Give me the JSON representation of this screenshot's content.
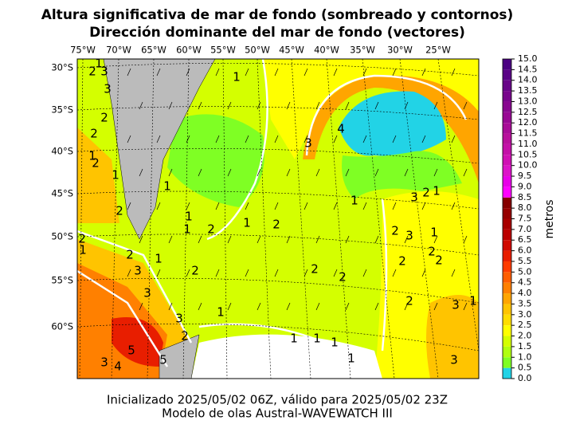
{
  "title": [
    "Altura significativa de mar de fondo (sombreado y contornos)",
    "Dirección dominante del mar de fondo (vectores)"
  ],
  "lon_labels": [
    "75°W",
    "70°W",
    "65°W",
    "60°W",
    "55°W",
    "50°W",
    "45°W",
    "40°W",
    "35°W",
    "30°W",
    "25°W"
  ],
  "lat_labels": [
    "30°S",
    "35°S",
    "40°S",
    "45°S",
    "50°S",
    "55°S",
    "60°S"
  ],
  "colorbar": {
    "label": "metros",
    "ticks": [
      {
        "value": 0,
        "label": "0.0"
      },
      0.5,
      {
        "value": 1,
        "label": "1.0"
      },
      1.5,
      {
        "value": 2,
        "label": "2.0"
      },
      2.5,
      {
        "value": 3,
        "label": "3.0"
      },
      3.5,
      {
        "value": 4,
        "label": "4.0"
      },
      4.5,
      {
        "value": 5,
        "label": "5.0"
      },
      5.5,
      {
        "value": 6,
        "label": "6.0"
      },
      6.5,
      {
        "value": 7,
        "label": "7.0"
      },
      7.5,
      {
        "value": 8,
        "label": "8.0"
      },
      8.5,
      {
        "value": 9,
        "label": "9.0"
      },
      9.5,
      {
        "value": 10,
        "label": "10.0"
      },
      10.5,
      {
        "value": 11,
        "label": "11.0"
      },
      11.5,
      {
        "value": 12,
        "label": "12.0"
      },
      12.5,
      {
        "value": 13,
        "label": "13.0"
      },
      13.5,
      {
        "value": 14,
        "label": "14.0"
      },
      14.5,
      {
        "value": 15,
        "label": "15.0"
      }
    ],
    "colors": [
      "#22d3e6",
      "#7fff24",
      "#b0ff10",
      "#d4ff00",
      "#ffff00",
      "#ffdd00",
      "#ffc400",
      "#ffa500",
      "#ff8000",
      "#ff5e00",
      "#ff3c00",
      "#e81e00",
      "#d00a00",
      "#bb0000",
      "#a80000",
      "#960000",
      "#850000",
      "#ff00ff",
      "#e800e8",
      "#dc14c8",
      "#d010b4",
      "#c410a8",
      "#b8109c",
      "#a80c98",
      "#980894",
      "#880690",
      "#78048c",
      "#680488",
      "#5a0286",
      "#4b0082"
    ]
  },
  "contour_labels": [
    2,
    3,
    1,
    3,
    2,
    2,
    1,
    2,
    1,
    1,
    2,
    2,
    1,
    2,
    1,
    1,
    1,
    2,
    1,
    2,
    2,
    3,
    3,
    3,
    2,
    1,
    3,
    4,
    5,
    5,
    1,
    3,
    4,
    1,
    3,
    2,
    1,
    2,
    3,
    1,
    2,
    2,
    2,
    2,
    2,
    2,
    3,
    1,
    1,
    1,
    1,
    1,
    3
  ],
  "footer": [
    "Inicializado 2025/05/02 06Z, válido para 2025/05/02 23Z",
    "Modelo de olas Austral-WAVEWATCH III"
  ]
}
